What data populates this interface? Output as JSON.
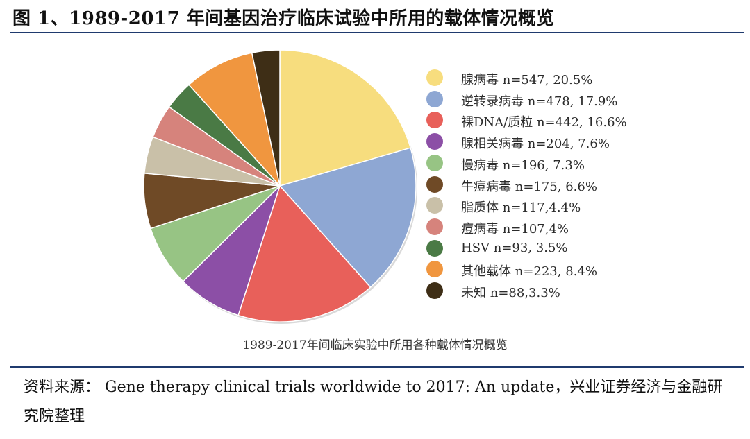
{
  "figure_title": "图 1、1989-2017 年间基因治疗临床试验中所用的载体情况概览",
  "caption": "1989-2017年间临床实验中所用各种载体情况概览",
  "source": {
    "label": "资料来源：",
    "text": "Gene therapy clinical trials worldwide to 2017: An update，兴业证券经济与金融研究院整理"
  },
  "chart_data": {
    "type": "pie",
    "title": "1989-2017年间临床实验中所用各种载体情况概览",
    "start_angle_deg": 0,
    "direction": "clockwise",
    "legend_position": "right",
    "slices": [
      {
        "name": "腺病毒",
        "n": 547,
        "percent": 20.5,
        "color": "#F7DD7E",
        "label": "腺病毒 n=547, 20.5%"
      },
      {
        "name": "逆转录病毒",
        "n": 478,
        "percent": 17.9,
        "color": "#8EA7D3",
        "label": "逆转录病毒 n=478, 17.9%"
      },
      {
        "name": "裸DNA/质粒",
        "n": 442,
        "percent": 16.6,
        "color": "#E8605A",
        "label": "裸DNA/质粒 n=442, 16.6%"
      },
      {
        "name": "腺相关病毒",
        "n": 204,
        "percent": 7.6,
        "color": "#8C4FA6",
        "label": "腺相关病毒 n=204, 7.6%"
      },
      {
        "name": "慢病毒",
        "n": 196,
        "percent": 7.3,
        "color": "#97C484",
        "label": "慢病毒 n=196, 7.3%"
      },
      {
        "name": "牛痘病毒",
        "n": 175,
        "percent": 6.6,
        "color": "#6F4A26",
        "label": "牛痘病毒 n=175, 6.6%"
      },
      {
        "name": "脂质体",
        "n": 117,
        "percent": 4.4,
        "color": "#C9C0A8",
        "label": "脂质体 n=117,4.4%"
      },
      {
        "name": "痘病毒",
        "n": 107,
        "percent": 4.0,
        "color": "#D6837C",
        "label": "痘病毒 n=107,4%"
      },
      {
        "name": "HSV",
        "n": 93,
        "percent": 3.5,
        "color": "#4A7A45",
        "label": "HSV n=93, 3.5%"
      },
      {
        "name": "其他载体",
        "n": 223,
        "percent": 8.4,
        "color": "#F0963F",
        "label": "其他载体 n=223, 8.4%"
      },
      {
        "name": "未知",
        "n": 88,
        "percent": 3.3,
        "color": "#3E2E16",
        "label": "未知 n=88,3.3%"
      }
    ]
  }
}
